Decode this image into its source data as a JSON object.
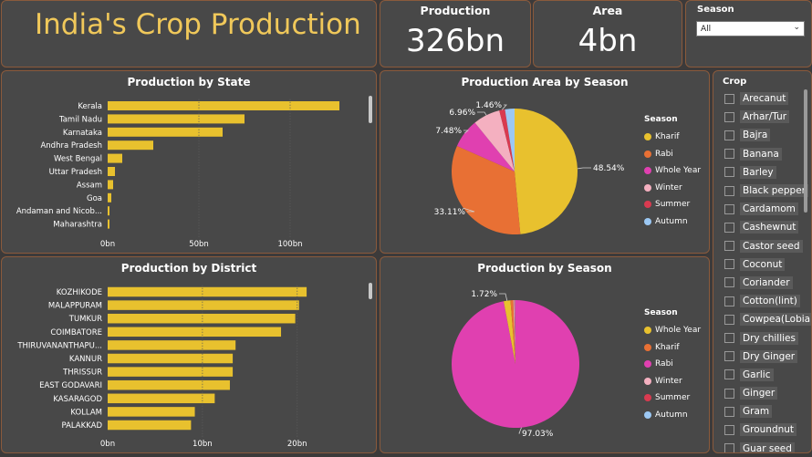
{
  "header": {
    "title": "India's Crop Production"
  },
  "cards": {
    "production": {
      "label": "Production",
      "value": "326bn"
    },
    "area": {
      "label": "Area",
      "value": "4bn"
    }
  },
  "season_slicer": {
    "label": "Season",
    "selected": "All"
  },
  "crop_slicer": {
    "label": "Crop",
    "items": [
      "Arecanut",
      "Arhar/Tur",
      "Bajra",
      "Banana",
      "Barley",
      "Black pepper",
      "Cardamom",
      "Cashewnut",
      "Castor seed",
      "Coconut",
      "Coriander",
      "Cotton(lint)",
      "Cowpea(Lobia)",
      "Dry chillies",
      "Dry Ginger",
      "Garlic",
      "Ginger",
      "Gram",
      "Groundnut",
      "Guar seed"
    ]
  },
  "colors": {
    "bar": "#e8c12e",
    "Kharif": "#e8c12e",
    "Rabi": "#e87034",
    "Whole Year": "#e040b0",
    "Winter": "#f4b0c0",
    "Summer": "#d93a50",
    "Autumn": "#9cc8f4",
    "accent": "#f0c85a"
  },
  "chart_data": [
    {
      "id": "state",
      "type": "bar",
      "orientation": "horizontal",
      "title": "Production by State",
      "categories": [
        "Kerala",
        "Tamil Nadu",
        "Karnataka",
        "Andhra Pradesh",
        "West Bengal",
        "Uttar Pradesh",
        "Assam",
        "Goa",
        "Andaman and Nicob...",
        "Maharashtra"
      ],
      "values": [
        127,
        75,
        63,
        25,
        8,
        4,
        3,
        2,
        1,
        1
      ],
      "xlim": [
        0,
        127
      ],
      "xticks": [
        0,
        50,
        100
      ],
      "xtick_labels": [
        "0bn",
        "50bn",
        "100bn"
      ]
    },
    {
      "id": "district",
      "type": "bar",
      "orientation": "horizontal",
      "title": "Production by District",
      "categories": [
        "KOZHIKODE",
        "MALAPPURAM",
        "TUMKUR",
        "COIMBATORE",
        "THIRUVANANTHAPU...",
        "KANNUR",
        "THRISSUR",
        "EAST GODAVARI",
        "KASARAGOD",
        "KOLLAM",
        "PALAKKAD"
      ],
      "values": [
        21,
        20.2,
        19.8,
        18.3,
        13.5,
        13.2,
        13.2,
        12.9,
        11.3,
        9.2,
        8.8
      ],
      "xlim": [
        0,
        23.4
      ],
      "xticks": [
        0,
        10,
        20
      ],
      "xtick_labels": [
        "0bn",
        "10bn",
        "20bn"
      ]
    },
    {
      "id": "area_season",
      "type": "pie",
      "title": "Production Area by Season",
      "legend_title": "Season",
      "labels": [
        "Kharif",
        "Rabi",
        "Whole Year",
        "Winter",
        "Summer",
        "Autumn"
      ],
      "values": [
        48.54,
        33.11,
        7.48,
        6.96,
        1.46,
        2.45
      ],
      "data_labels": [
        {
          "text": "48.54%"
        },
        {
          "text": "33.11%"
        },
        {
          "text": "7.48%"
        },
        {
          "text": "6.96%"
        },
        {
          "text": "1.46%"
        }
      ]
    },
    {
      "id": "prod_season",
      "type": "pie",
      "title": "Production by Season",
      "legend_title": "Season",
      "labels": [
        "Whole Year",
        "Kharif",
        "Rabi",
        "Winter",
        "Summer",
        "Autumn"
      ],
      "values": [
        97.03,
        1.72,
        0.7,
        0.25,
        0.2,
        0.1
      ],
      "data_labels": [
        {
          "text": "97.03%"
        },
        {
          "text": "1.72%"
        }
      ]
    }
  ]
}
